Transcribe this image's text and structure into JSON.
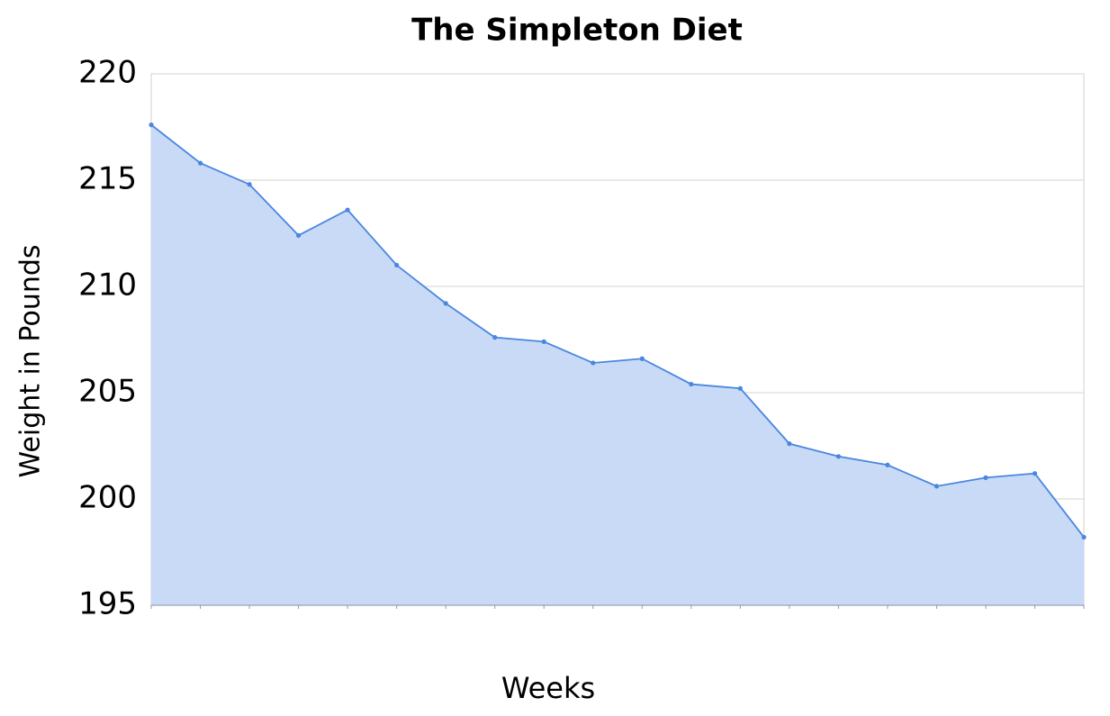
{
  "chart_data": {
    "type": "area",
    "title": "The Simpleton Diet",
    "x_label": "Weeks",
    "y_label": "Weight in Pounds",
    "categories": [
      null,
      null,
      null,
      null,
      null,
      null,
      null,
      null,
      null,
      null,
      null,
      null,
      null,
      null,
      null,
      null,
      null,
      null,
      null,
      null
    ],
    "values": [
      217.6,
      215.8,
      214.8,
      212.4,
      213.6,
      211.0,
      209.2,
      207.6,
      207.4,
      206.4,
      206.6,
      205.4,
      205.2,
      202.6,
      202.0,
      201.6,
      200.6,
      201.0,
      201.2,
      198.2
    ],
    "color": "#4a86e0",
    "fill_color": "#c5d8f6",
    "ylim": [
      195,
      220
    ],
    "yticks": [
      195,
      200,
      205,
      210,
      215,
      220
    ],
    "grid": true
  }
}
